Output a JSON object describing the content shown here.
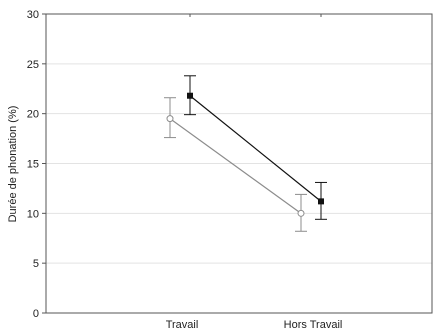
{
  "chart_data": {
    "type": "line",
    "title": "",
    "xlabel": "",
    "ylabel": "Durée de phonation (%)",
    "categories": [
      "Travail",
      "Hors Travail"
    ],
    "ylim": [
      0,
      30
    ],
    "yticks": [
      0,
      5,
      10,
      15,
      20,
      25,
      30
    ],
    "grid": "horizontal",
    "legend": "none",
    "series": [
      {
        "values": [
          21.8,
          11.2
        ],
        "error_low": [
          19.9,
          9.4
        ],
        "error_high": [
          23.8,
          13.1
        ],
        "marker": "filled-square",
        "color": "#111111"
      },
      {
        "values": [
          19.5,
          10.0
        ],
        "error_low": [
          17.6,
          8.2
        ],
        "error_high": [
          21.6,
          11.9
        ],
        "marker": "open-circle",
        "color": "#8c8c8c"
      }
    ]
  }
}
